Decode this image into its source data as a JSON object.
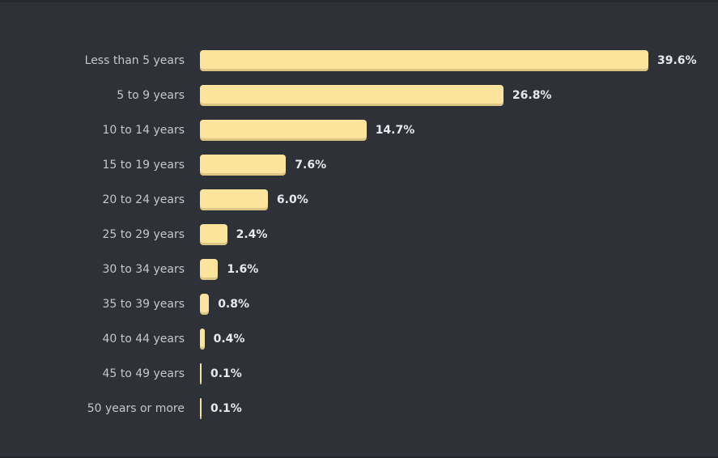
{
  "colors": {
    "background": "#2e3238",
    "top_edge": "#26282d",
    "bottom_edge": "#242629",
    "bar_fill": "#fce49c",
    "bar_bottom_shade": "#e2cf8f",
    "label_text": "#c3c7ce",
    "value_text": "#e7e9ec"
  },
  "chart_data": {
    "type": "bar",
    "orientation": "horizontal",
    "title": "",
    "xlabel": "",
    "ylabel": "",
    "grid": false,
    "legend": false,
    "xlim": [
      0,
      39.6
    ],
    "categories": [
      "Less than 5 years",
      "5 to 9 years",
      "10 to 14 years",
      "15 to 19 years",
      "20 to 24 years",
      "25 to 29 years",
      "30 to 34 years",
      "35 to 39 years",
      "40 to 44 years",
      "45 to 49 years",
      "50 years or more"
    ],
    "values": [
      39.6,
      26.8,
      14.7,
      7.6,
      6.0,
      2.4,
      1.6,
      0.8,
      0.4,
      0.1,
      0.1
    ],
    "value_labels": [
      "39.6%",
      "26.8%",
      "14.7%",
      "7.6%",
      "6.0%",
      "2.4%",
      "1.6%",
      "0.8%",
      "0.4%",
      "0.1%",
      "0.1%"
    ]
  }
}
